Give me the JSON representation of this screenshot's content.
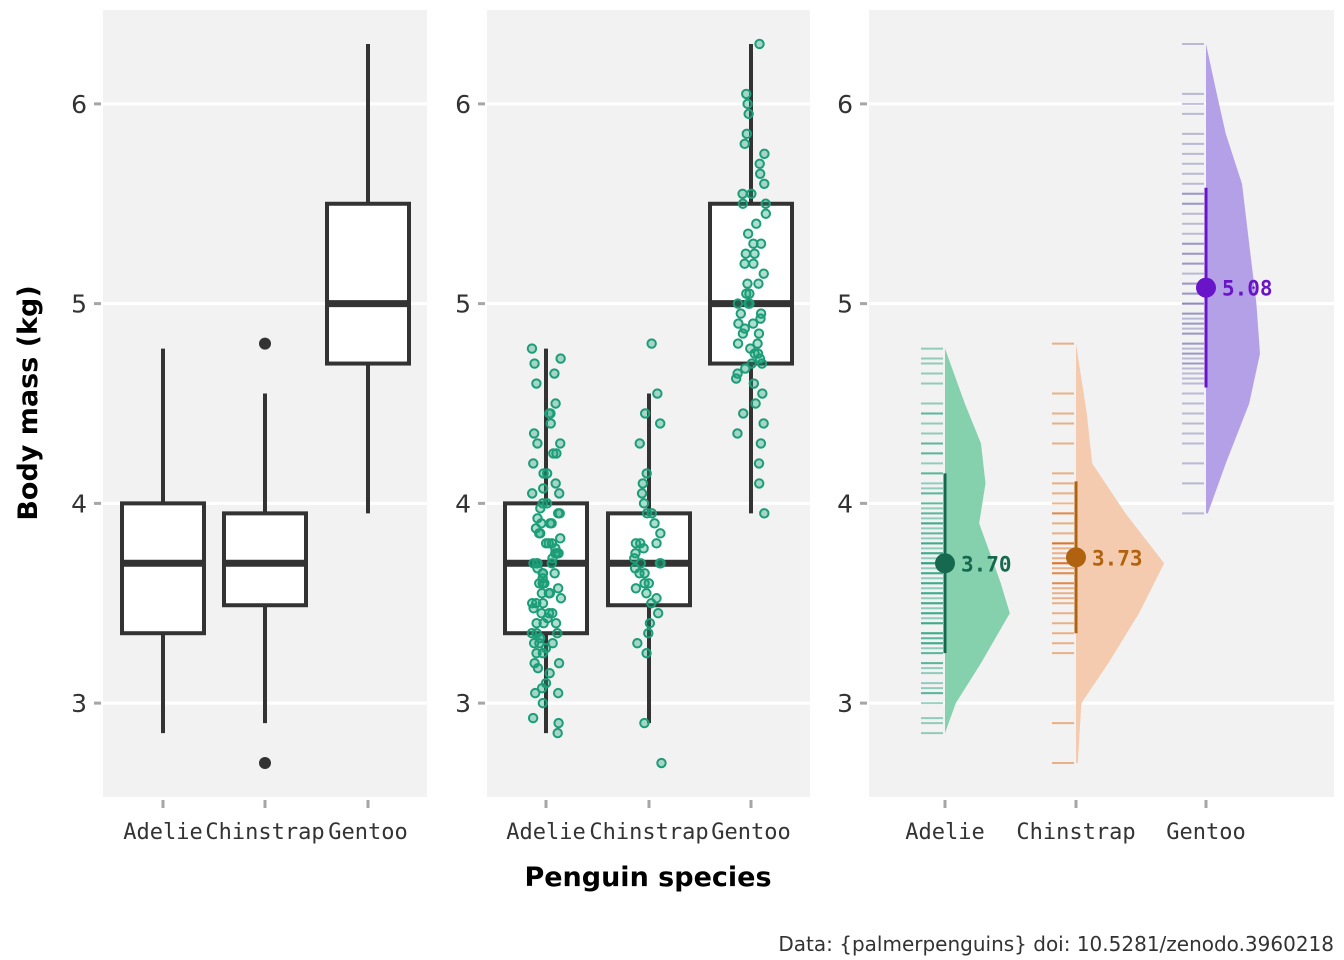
{
  "caption": "Data: {palmerpenguins} doi: 10.5281/zenodo.3960218",
  "chart_data": {
    "type": "box",
    "xlabel": "Penguin species",
    "ylabel": "Body mass (kg)",
    "ylim": [
      2.53,
      6.47
    ],
    "yticks": [
      3,
      4,
      5,
      6
    ],
    "grid": true,
    "categories": [
      "Adelie",
      "Chinstrap",
      "Gentoo"
    ],
    "species_colors": {
      "Adelie": "#1b9e77",
      "Chinstrap": "#d95f02",
      "Gentoo": "#7570b3"
    },
    "panels": [
      {
        "type": "boxplot",
        "boxes": [
          {
            "name": "Adelie",
            "min": 2.85,
            "q1": 3.35,
            "median": 3.7,
            "q3": 4.0,
            "max": 4.775,
            "outliers": []
          },
          {
            "name": "Chinstrap",
            "min": 2.9,
            "q1": 3.49,
            "median": 3.7,
            "q3": 3.95,
            "max": 4.55,
            "outliers": [
              2.7,
              4.8
            ]
          },
          {
            "name": "Gentoo",
            "min": 3.95,
            "q1": 4.7,
            "median": 5.0,
            "q3": 5.5,
            "max": 6.3,
            "outliers": []
          }
        ]
      },
      {
        "type": "boxplot_jitter",
        "point_color": "#1b9e77",
        "points": {
          "Adelie": [
            2.85,
            2.9,
            2.925,
            3.0,
            3.05,
            3.05,
            3.075,
            3.1,
            3.15,
            3.175,
            3.2,
            3.2,
            3.25,
            3.25,
            3.275,
            3.3,
            3.3,
            3.3,
            3.325,
            3.325,
            3.35,
            3.35,
            3.35,
            3.4,
            3.4,
            3.4,
            3.425,
            3.45,
            3.45,
            3.45,
            3.475,
            3.5,
            3.5,
            3.5,
            3.525,
            3.55,
            3.55,
            3.55,
            3.575,
            3.6,
            3.6,
            3.6,
            3.625,
            3.65,
            3.65,
            3.65,
            3.675,
            3.7,
            3.7,
            3.7,
            3.7,
            3.725,
            3.75,
            3.75,
            3.75,
            3.775,
            3.8,
            3.8,
            3.8,
            3.825,
            3.85,
            3.85,
            3.875,
            3.9,
            3.9,
            3.9,
            3.925,
            3.95,
            3.95,
            3.975,
            4.0,
            4.0,
            4.05,
            4.05,
            4.075,
            4.1,
            4.15,
            4.15,
            4.2,
            4.25,
            4.25,
            4.3,
            4.3,
            4.35,
            4.4,
            4.45,
            4.45,
            4.5,
            4.6,
            4.65,
            4.7,
            4.725,
            4.775
          ],
          "Chinstrap": [
            2.7,
            2.9,
            3.25,
            3.3,
            3.35,
            3.4,
            3.45,
            3.5,
            3.525,
            3.55,
            3.575,
            3.6,
            3.6,
            3.65,
            3.65,
            3.675,
            3.7,
            3.7,
            3.7,
            3.725,
            3.75,
            3.775,
            3.8,
            3.8,
            3.8,
            3.85,
            3.9,
            3.95,
            3.95,
            4.0,
            4.05,
            4.1,
            4.15,
            4.3,
            4.4,
            4.45,
            4.55,
            4.8
          ],
          "Gentoo": [
            3.95,
            4.1,
            4.2,
            4.3,
            4.35,
            4.4,
            4.45,
            4.5,
            4.55,
            4.6,
            4.625,
            4.65,
            4.675,
            4.7,
            4.7,
            4.725,
            4.75,
            4.75,
            4.775,
            4.8,
            4.8,
            4.85,
            4.85,
            4.875,
            4.9,
            4.9,
            4.925,
            4.95,
            4.95,
            5.0,
            5.0,
            5.0,
            5.05,
            5.05,
            5.1,
            5.1,
            5.15,
            5.2,
            5.2,
            5.25,
            5.25,
            5.3,
            5.3,
            5.35,
            5.4,
            5.45,
            5.5,
            5.5,
            5.55,
            5.55,
            5.6,
            5.65,
            5.7,
            5.75,
            5.8,
            5.85,
            5.95,
            6.0,
            6.05,
            6.3
          ]
        }
      },
      {
        "type": "raincloud",
        "clouds": [
          {
            "name": "Adelie",
            "mean": 3.7,
            "mean_label": "3.70",
            "interval": [
              3.25,
              4.15
            ],
            "range": [
              2.85,
              4.775
            ],
            "color": "#1b9e77",
            "fill": "#85d1ae",
            "point_color": "#16694f",
            "density": [
              [
                2.85,
                0.0
              ],
              [
                3.0,
                0.12
              ],
              [
                3.2,
                0.4
              ],
              [
                3.45,
                0.72
              ],
              [
                3.6,
                0.62
              ],
              [
                3.75,
                0.5
              ],
              [
                3.9,
                0.38
              ],
              [
                4.1,
                0.45
              ],
              [
                4.3,
                0.4
              ],
              [
                4.5,
                0.22
              ],
              [
                4.775,
                0.0
              ]
            ]
          },
          {
            "name": "Chinstrap",
            "mean": 3.73,
            "mean_label": "3.73",
            "interval": [
              3.35,
              4.11
            ],
            "range": [
              2.7,
              4.8
            ],
            "color": "#d95f02",
            "fill": "#f5cbaf",
            "point_color": "#b0620e",
            "density": [
              [
                2.7,
                0.02
              ],
              [
                3.0,
                0.06
              ],
              [
                3.2,
                0.36
              ],
              [
                3.45,
                0.7
              ],
              [
                3.7,
                0.98
              ],
              [
                3.95,
                0.55
              ],
              [
                4.2,
                0.18
              ],
              [
                4.45,
                0.12
              ],
              [
                4.8,
                0.0
              ]
            ]
          },
          {
            "name": "Gentoo",
            "mean": 5.08,
            "mean_label": "5.08",
            "interval": [
              4.58,
              5.58
            ],
            "range": [
              3.95,
              6.3
            ],
            "color": "#7570b3",
            "fill": "#b4a0e6",
            "point_color": "#6a14c9",
            "density": [
              [
                3.95,
                0.02
              ],
              [
                4.2,
                0.22
              ],
              [
                4.5,
                0.48
              ],
              [
                4.75,
                0.6
              ],
              [
                5.0,
                0.56
              ],
              [
                5.3,
                0.48
              ],
              [
                5.6,
                0.4
              ],
              [
                5.85,
                0.22
              ],
              [
                6.05,
                0.12
              ],
              [
                6.3,
                0.0
              ]
            ]
          }
        ]
      }
    ]
  }
}
